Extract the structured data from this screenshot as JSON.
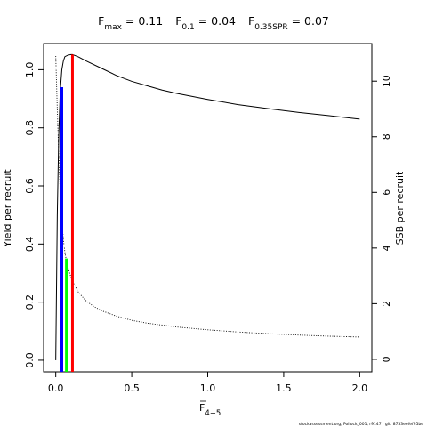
{
  "chart_data": {
    "type": "line",
    "title": {
      "fmax": {
        "symbol": "F",
        "sub": "max",
        "value": "0.11"
      },
      "f01": {
        "symbol": "F",
        "sub": "0.1",
        "value": "0.04"
      },
      "fspr": {
        "symbol": "F",
        "sub": "0.35SPR",
        "value": "0.07"
      },
      "equals": " = "
    },
    "xlabel": {
      "symbol": "F",
      "sub": "4−5"
    },
    "ylabel_left": "Yield per recruit",
    "ylabel_right": "SSB per recruit",
    "xlim": [
      -0.08,
      2.08
    ],
    "ylim_left": [
      -0.04,
      1.09
    ],
    "ylim_right": [
      -0.45,
      11.35
    ],
    "x_ticks": [
      0,
      0.5,
      1,
      1.5,
      2
    ],
    "x_tick_labels": [
      "0.0",
      "0.5",
      "1.0",
      "1.5",
      "2.0"
    ],
    "y_left_ticks": [
      0,
      0.2,
      0.4,
      0.6,
      0.8,
      1.0
    ],
    "y_left_tick_labels": [
      "0.0",
      "0.2",
      "0.4",
      "0.6",
      "0.8",
      "1.0"
    ],
    "y_right_ticks": [
      0,
      2,
      4,
      6,
      8,
      10
    ],
    "y_right_tick_labels": [
      "0",
      "2",
      "4",
      "6",
      "8",
      "10"
    ],
    "grid": false,
    "series": [
      {
        "axis": "left",
        "style": "solid",
        "color": "#000000",
        "x": [
          0,
          0.01,
          0.02,
          0.03,
          0.04,
          0.05,
          0.06,
          0.08,
          0.1,
          0.11,
          0.13,
          0.15,
          0.2,
          0.3,
          0.4,
          0.5,
          0.6,
          0.7,
          0.8,
          1.0,
          1.2,
          1.4,
          1.6,
          1.8,
          2.0
        ],
        "y": [
          0,
          0.5,
          0.78,
          0.93,
          1.0,
          1.03,
          1.045,
          1.05,
          1.052,
          1.052,
          1.048,
          1.044,
          1.03,
          1.005,
          0.98,
          0.96,
          0.945,
          0.93,
          0.918,
          0.898,
          0.88,
          0.866,
          0.853,
          0.842,
          0.83
        ]
      },
      {
        "axis": "right",
        "style": "dotted",
        "color": "#000000",
        "x": [
          0,
          0.01,
          0.02,
          0.03,
          0.04,
          0.05,
          0.06,
          0.07,
          0.08,
          0.1,
          0.12,
          0.15,
          0.2,
          0.25,
          0.3,
          0.4,
          0.5,
          0.6,
          0.8,
          1.0,
          1.2,
          1.4,
          1.6,
          1.8,
          2.0
        ],
        "y": [
          10.9,
          9.0,
          7.3,
          6.0,
          5.0,
          4.3,
          3.85,
          3.55,
          3.3,
          2.95,
          2.7,
          2.4,
          2.1,
          1.9,
          1.75,
          1.55,
          1.4,
          1.3,
          1.16,
          1.06,
          0.98,
          0.92,
          0.87,
          0.83,
          0.8
        ]
      }
    ],
    "reference_lines": [
      {
        "name": "F0.1",
        "color": "#0000ff",
        "x": 0.04,
        "axis": "left",
        "ymax": 0.94
      },
      {
        "name": "F0.35SPR",
        "color": "#00ff00",
        "x": 0.07,
        "axis": "left",
        "ymax": 0.35
      },
      {
        "name": "Fmax",
        "color": "#ff0000",
        "x": 0.11,
        "axis": "left",
        "ymax": 1.052
      }
    ],
    "footer": "stockassessment.org, Pollock_001, r9147 , git: 8733eefef95be"
  }
}
